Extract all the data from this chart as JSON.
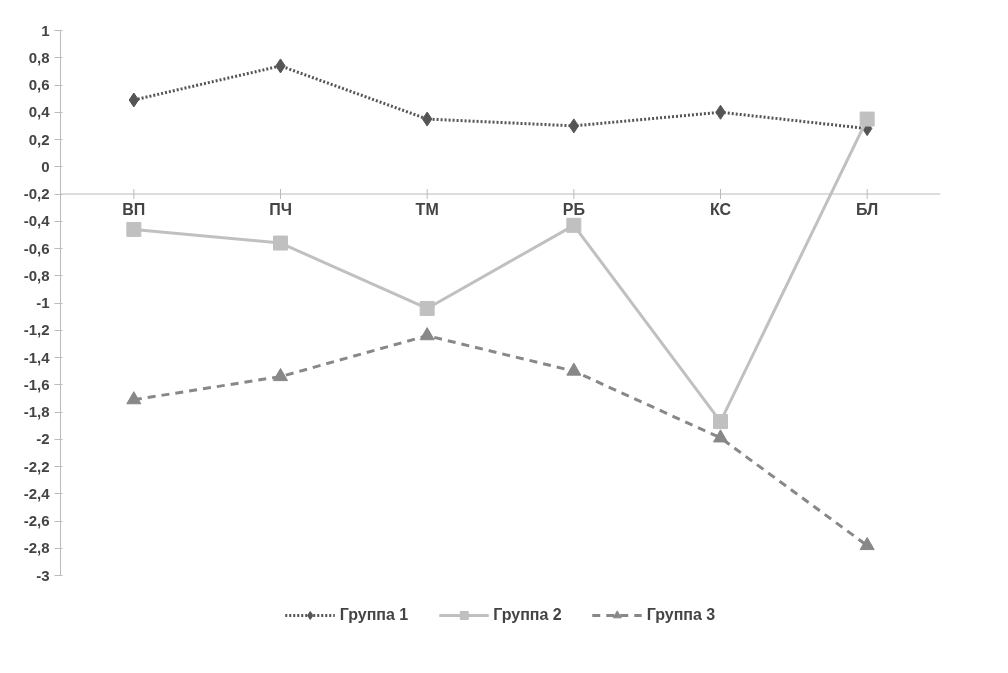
{
  "chart_data": {
    "type": "line",
    "categories": [
      "ВП",
      "ПЧ",
      "ТМ",
      "РБ",
      "КС",
      "БЛ"
    ],
    "series": [
      {
        "name": "Группа 1",
        "color": "#555555",
        "marker": "diamond",
        "line_style": "dotted",
        "values": [
          0.49,
          0.74,
          0.35,
          0.3,
          0.4,
          0.28
        ]
      },
      {
        "name": "Группа 2",
        "color": "#c0c0c0",
        "marker": "square",
        "line_style": "solid",
        "values": [
          -0.46,
          -0.56,
          -1.04,
          -0.43,
          -1.87,
          0.35
        ]
      },
      {
        "name": "Группа 3",
        "color": "#888888",
        "marker": "triangle",
        "line_style": "dashed",
        "values": [
          -1.71,
          -1.54,
          -1.24,
          -1.5,
          -1.99,
          -2.78
        ]
      }
    ],
    "ylim": [
      -3,
      1
    ],
    "yticks": [
      {
        "value": -3,
        "label": "-3"
      },
      {
        "value": -2.8,
        "label": "-2,8"
      },
      {
        "value": -2.6,
        "label": "-2,6"
      },
      {
        "value": -2.4,
        "label": "-2,4"
      },
      {
        "value": -2.2,
        "label": "-2,2"
      },
      {
        "value": -2,
        "label": "-2"
      },
      {
        "value": -1.8,
        "label": "-1,8"
      },
      {
        "value": -1.6,
        "label": "-1,6"
      },
      {
        "value": -1.4,
        "label": "-1,4"
      },
      {
        "value": -1.2,
        "label": "-1,2"
      },
      {
        "value": -1,
        "label": "-1"
      },
      {
        "value": -0.8,
        "label": "-0,8"
      },
      {
        "value": -0.6,
        "label": "-0,6"
      },
      {
        "value": -0.4,
        "label": "-0,4"
      },
      {
        "value": -0.2,
        "label": "-0,2"
      },
      {
        "value": 0,
        "label": "0"
      },
      {
        "value": 0.2,
        "label": "0,2"
      },
      {
        "value": 0.4,
        "label": "0,4"
      },
      {
        "value": 0.6,
        "label": "0,6"
      },
      {
        "value": 0.8,
        "label": "0,8"
      },
      {
        "value": 1,
        "label": "1"
      }
    ],
    "grid": false,
    "legend": "bottom"
  }
}
